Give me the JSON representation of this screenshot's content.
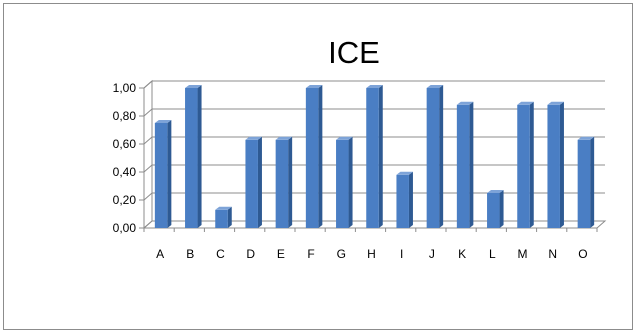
{
  "chart_data": {
    "type": "bar",
    "title": "ICE",
    "categories": [
      "A",
      "B",
      "C",
      "D",
      "E",
      "F",
      "G",
      "H",
      "I",
      "J",
      "K",
      "L",
      "M",
      "N",
      "O"
    ],
    "values": [
      0.75,
      1.0,
      0.13,
      0.63,
      0.63,
      1.0,
      0.63,
      1.0,
      0.38,
      1.0,
      0.88,
      0.25,
      0.88,
      0.88,
      0.63
    ],
    "y_ticks": [
      "0,00",
      "0,20",
      "0,40",
      "0,60",
      "0,80",
      "1,00"
    ],
    "ylim": [
      0,
      1
    ],
    "grid": true,
    "style": "3d-column",
    "colors": {
      "bar_front": "#4a7ec4",
      "bar_side": "#2e5a93",
      "bar_top": "#7da3d8",
      "grid": "#8c8c8c",
      "wall": "#ffffff"
    }
  }
}
